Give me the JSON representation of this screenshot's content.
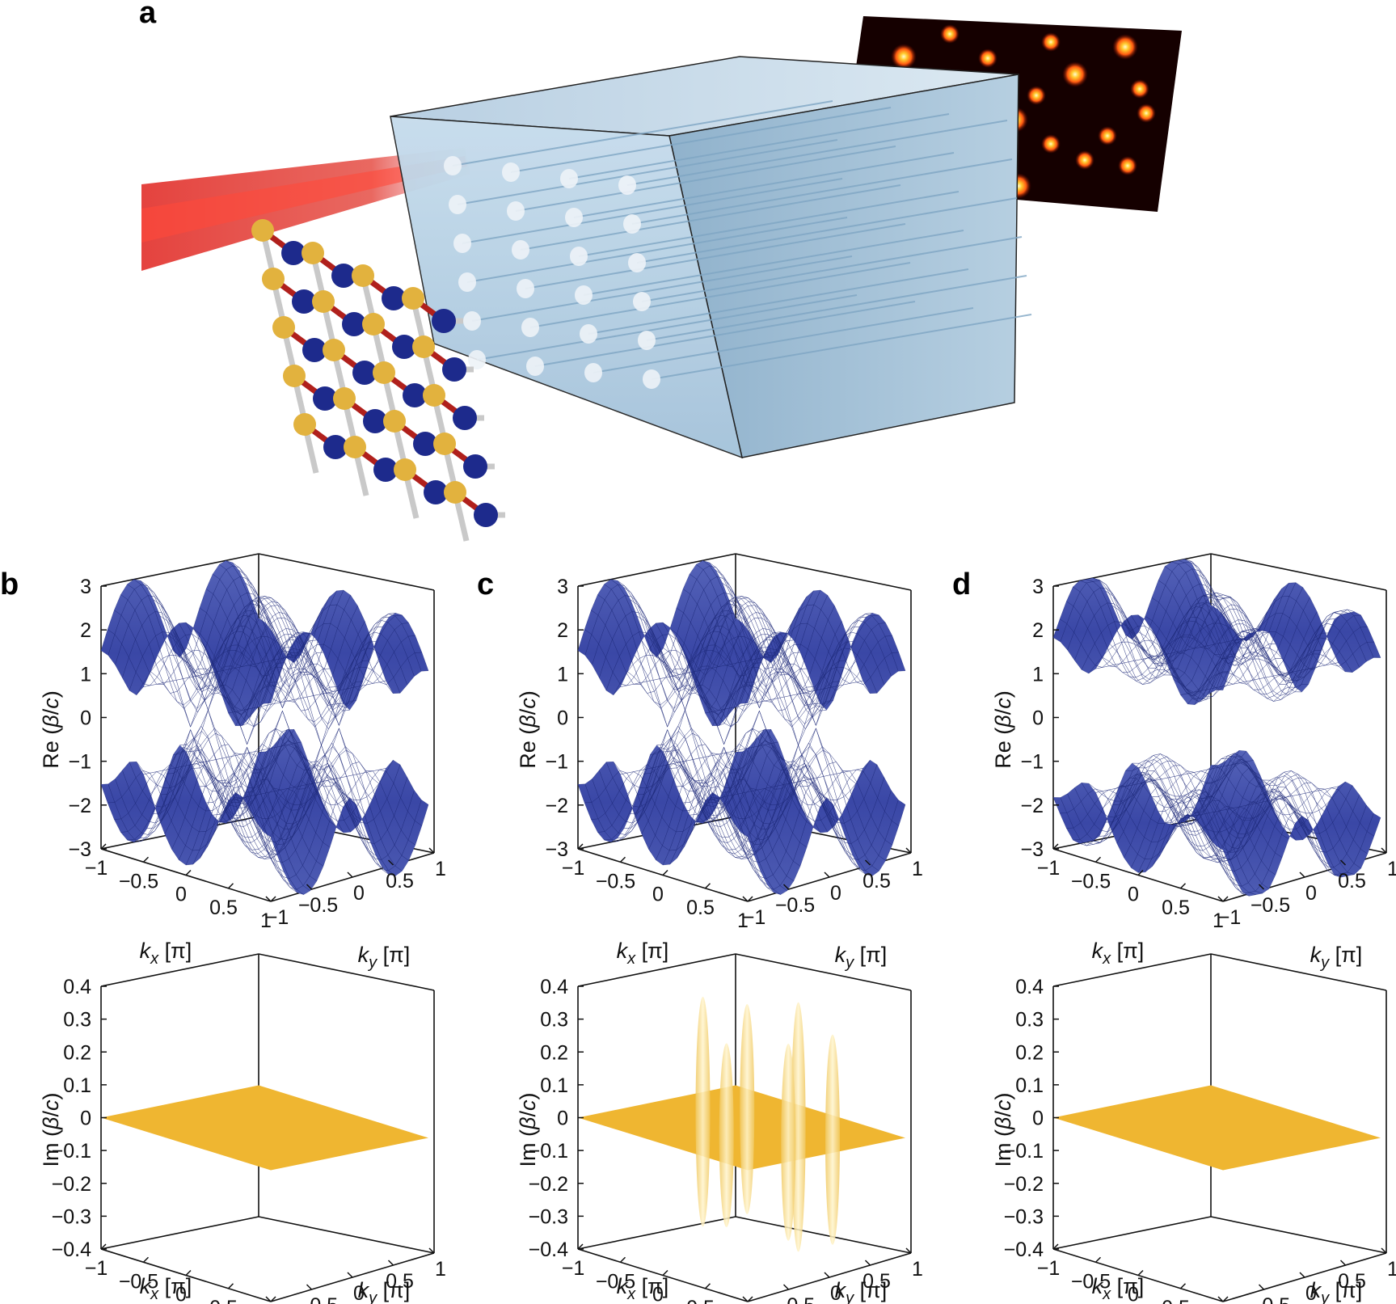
{
  "figure": {
    "panel_labels": {
      "a": "a",
      "b": "b",
      "c": "c",
      "d": "d"
    },
    "re_axis": {
      "prefix": "Re (",
      "sym": "β",
      "slash": "/",
      "c": "c",
      "suffix": ")"
    },
    "im_axis": {
      "prefix": "Im (",
      "sym": "β",
      "slash": "/",
      "c": "c",
      "suffix": ")"
    },
    "kx_axis": {
      "k": "k",
      "sub": "x",
      "unit": " [π]"
    },
    "ky_axis": {
      "k": "k",
      "sub": "y",
      "unit": " [π]"
    },
    "re_ticks": [
      "3",
      "2",
      "1",
      "0",
      "−1",
      "−2",
      "−3"
    ],
    "im_ticks": [
      "0.4",
      "0.3",
      "0.2",
      "0.1",
      "0",
      "−0.1",
      "−0.2",
      "−0.3",
      "−0.4"
    ],
    "kx_ticks": [
      "−1",
      "−0.5",
      "0",
      "0.5",
      "1"
    ],
    "ky_ticks": [
      "−1",
      "−0.5",
      "0",
      "0.5",
      "1"
    ],
    "colors": {
      "band_surface": "#3a47a6",
      "band_line": "#1e2a7a",
      "imag_surface": "#efb631",
      "beam": "#e0231e",
      "atom_blue": "#1d2a8c",
      "atom_gold": "#e2b23e",
      "bond_red": "#b0201c",
      "crystal": "#a9c7e0",
      "camera_bg": "#150000"
    }
  },
  "chart_data": [
    {
      "panel": "b",
      "type": "surface",
      "xlabel": "kx [π]",
      "ylabel": "ky [π]",
      "zlabel": "Re (β/c)",
      "xlim": [
        -1,
        1
      ],
      "ylim": [
        -1,
        1
      ],
      "zlim": [
        -3,
        3
      ],
      "series": [
        {
          "values_range": [
            -3,
            3
          ]
        }
      ]
    },
    {
      "panel": "c",
      "type": "surface",
      "xlabel": "kx [π]",
      "ylabel": "ky [π]",
      "zlabel": "Re (β/c)",
      "xlim": [
        -1,
        1
      ],
      "ylim": [
        -1,
        1
      ],
      "zlim": [
        -3,
        3
      ],
      "series": [
        {
          "values_range": [
            -3,
            3
          ]
        }
      ]
    },
    {
      "panel": "d",
      "type": "surface",
      "xlabel": "kx [π]",
      "ylabel": "ky [π]",
      "zlabel": "Re (β/c)",
      "xlim": [
        -1,
        1
      ],
      "ylim": [
        -1,
        1
      ],
      "zlim": [
        -3,
        3
      ],
      "series": [
        {
          "values_range": [
            -3,
            3
          ]
        }
      ]
    },
    {
      "panel": "b",
      "type": "surface",
      "xlabel": "kx [π]",
      "ylabel": "ky [π]",
      "zlabel": "Im (β/c)",
      "xlim": [
        -1,
        1
      ],
      "ylim": [
        -1,
        1
      ],
      "zlim": [
        -0.4,
        0.4
      ],
      "series": [
        {
          "values_range": [
            0,
            0
          ]
        }
      ]
    },
    {
      "panel": "c",
      "type": "surface",
      "xlabel": "kx [π]",
      "ylabel": "ky [π]",
      "zlabel": "Im (β/c)",
      "xlim": [
        -1,
        1
      ],
      "ylim": [
        -1,
        1
      ],
      "zlim": [
        -0.4,
        0.4
      ],
      "series": [
        {
          "values_range": [
            -0.4,
            0.4
          ]
        }
      ]
    },
    {
      "panel": "d",
      "type": "surface",
      "xlabel": "kx [π]",
      "ylabel": "ky [π]",
      "zlabel": "Im (β/c)",
      "xlim": [
        -1,
        1
      ],
      "ylim": [
        -1,
        1
      ],
      "zlim": [
        -0.4,
        0.4
      ],
      "series": [
        {
          "values_range": [
            0,
            0
          ]
        }
      ]
    }
  ]
}
